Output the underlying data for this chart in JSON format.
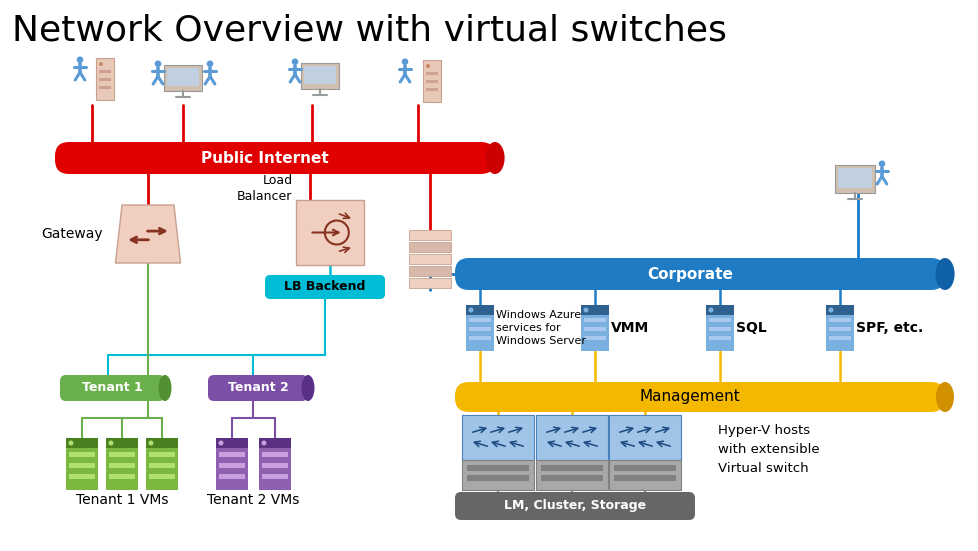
{
  "title": "Network Overview with virtual switches",
  "background_color": "#ffffff",
  "title_fontsize": 26,
  "title_color": "#000000",
  "colors": {
    "red_bar": "#e00000",
    "blue_bar": "#1e7bc4",
    "yellow_bar": "#f5b800",
    "cyan_box": "#00bcd4",
    "green_box": "#6ab04c",
    "purple_box": "#7b4fa6",
    "gray_box": "#666666",
    "light_pink": "#f0cfc0",
    "pink_border": "#c8a090",
    "green_vm": "#7ab840",
    "green_vm_dark": "#4a8020",
    "green_vm_light": "#b0e070",
    "purple_vm": "#9060b0",
    "purple_vm_dark": "#5a3080",
    "purple_vm_light": "#c8a0e0",
    "server_blue": "#5b9bd5",
    "server_blue2": "#7ab0e0",
    "server_dark": "#2e6090",
    "server_light": "#a8c8f0",
    "hyper_blue_top": "#a0c4e8",
    "hyper_blue_border": "#4a80c0",
    "hyper_gray": "#a8a8a8",
    "hyper_gray_dark": "#808080",
    "line_red": "#e00000",
    "line_blue": "#1e7bc4",
    "line_cyan": "#00bcd4",
    "line_green": "#6ab04c",
    "line_purple": "#7b4fa6",
    "line_yellow": "#f5b800",
    "line_gray": "#888888",
    "person_color": "#5b9bd5",
    "tower_color": "#e8c8b8",
    "monitor_color": "#d0c0b0",
    "firewall_color": "#e8c8b8"
  },
  "labels": {
    "public_internet": "Public Internet",
    "corporate": "Corporate",
    "management": "Management",
    "lb_backend": "LB Backend",
    "tenant1": "Tenant 1",
    "tenant2": "Tenant 2",
    "tenant1_vms": "Tenant 1 VMs",
    "tenant2_vms": "Tenant 2 VMs",
    "lm_cluster": "LM, Cluster, Storage",
    "gateway": "Gateway",
    "load_balancer": "Load\nBalancer",
    "azure": "Windows Azure\nservices for\nWindows Server",
    "vmm": "VMM",
    "sql": "SQL",
    "spf": "SPF, etc.",
    "hyper_v": "Hyper-V hosts\nwith extensible\nVirtual switch"
  }
}
